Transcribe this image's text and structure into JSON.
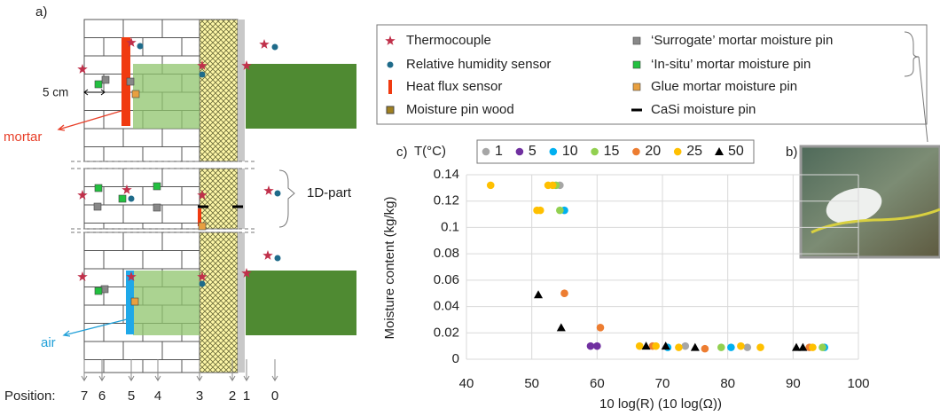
{
  "diagram": {
    "panel_label": "a)",
    "scale_label": "5 cm",
    "mortar_label": "mortar",
    "air_label": "air",
    "part_label": "1D-part",
    "position_label": "Position:",
    "positions": [
      "7",
      "6",
      "5",
      "4",
      "3",
      "2",
      "1",
      "0"
    ]
  },
  "legend": {
    "items_left": [
      "Thermocouple",
      "Relative humidity sensor",
      "Heat flux sensor",
      "Moisture pin wood"
    ],
    "items_right": [
      "‘Surrogate’ mortar moisture pin",
      "‘In-situ’ mortar moisture pin",
      "Glue mortar moisture pin",
      "CaSi moisture pin"
    ]
  },
  "photo": {
    "panel_label": "b)"
  },
  "chart_data": {
    "type": "scatter",
    "panel_label": "c)",
    "legend_title": "T(°C)",
    "x_label": "10 log(R)  (10 log(Ω))",
    "y_label": "Moisture content (kg/kg)",
    "xlim": [
      40,
      100
    ],
    "xticks": [
      40,
      50,
      60,
      70,
      80,
      90,
      100
    ],
    "ylim": [
      0,
      0.14
    ],
    "yticks": [
      0,
      0.02,
      0.04,
      0.06,
      0.08,
      0.1,
      0.12,
      0.14
    ],
    "grid": true,
    "series": [
      {
        "name": "1",
        "color": "#a6a6a6",
        "marker": "circle",
        "x": [
          54.3,
          73.5,
          83
        ],
        "values": [
          0.132,
          0.01,
          0.009
        ]
      },
      {
        "name": "5",
        "color": "#7030a0",
        "marker": "circle",
        "x": [
          59,
          60
        ],
        "values": [
          0.01,
          0.01
        ]
      },
      {
        "name": "10",
        "color": "#00b0f0",
        "marker": "circle",
        "x": [
          55,
          70.8,
          80.5,
          94.8
        ],
        "values": [
          0.113,
          0.009,
          0.009,
          0.009
        ]
      },
      {
        "name": "15",
        "color": "#92d050",
        "marker": "circle",
        "x": [
          53.7,
          54.3,
          79,
          94.5
        ],
        "values": [
          0.132,
          0.113,
          0.009,
          0.009
        ]
      },
      {
        "name": "20",
        "color": "#ed7d31",
        "marker": "circle",
        "x": [
          55,
          60.5,
          68.5,
          76.5,
          92.5
        ],
        "values": [
          0.05,
          0.024,
          0.01,
          0.008,
          0.009
        ]
      },
      {
        "name": "25",
        "color": "#ffc000",
        "marker": "circle",
        "x": [
          43.7,
          50.8,
          51.3,
          52.5,
          53.2,
          66.5,
          69,
          72.5,
          82,
          85,
          93
        ],
        "values": [
          0.132,
          0.113,
          0.113,
          0.132,
          0.132,
          0.01,
          0.01,
          0.009,
          0.01,
          0.009,
          0.009
        ]
      },
      {
        "name": "50",
        "color": "#000000",
        "marker": "triangle",
        "x": [
          51,
          54.5,
          67.5,
          70.5,
          75,
          90.5,
          91.5
        ],
        "values": [
          0.049,
          0.024,
          0.01,
          0.01,
          0.009,
          0.009,
          0.009
        ]
      }
    ]
  }
}
